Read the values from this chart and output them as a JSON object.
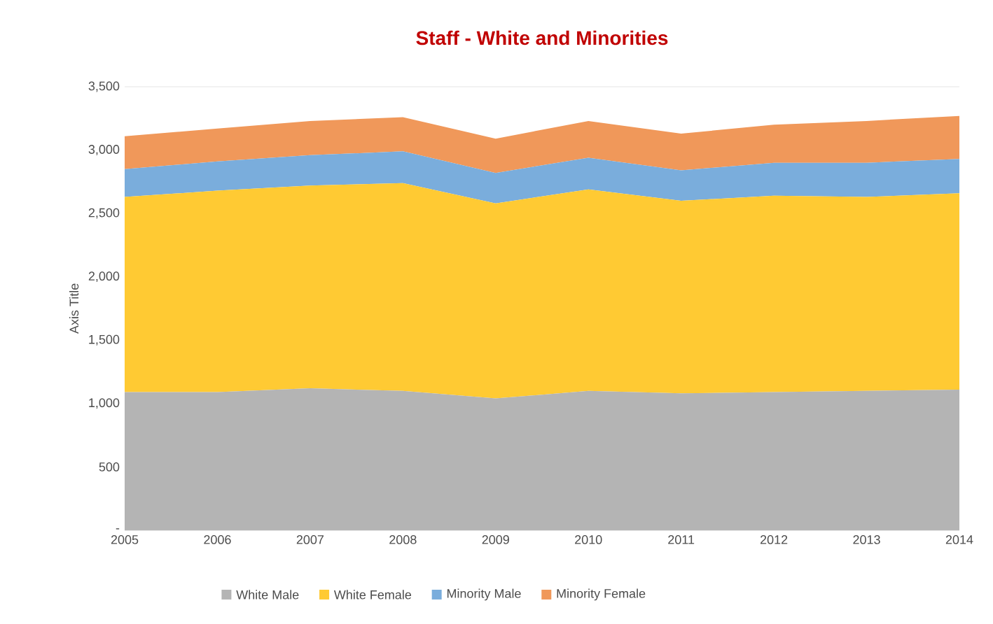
{
  "chart_data": {
    "type": "area",
    "title": "Staff - White and Minorities",
    "ylabel": "Axis Title",
    "stacked": true,
    "grid": "y",
    "legend": "bottom",
    "categories": [
      "2005",
      "2006",
      "2007",
      "2008",
      "2009",
      "2010",
      "2011",
      "2012",
      "2013",
      "2014"
    ],
    "series": [
      {
        "name": "White Male",
        "color": "#b4b4b4",
        "values": [
          1090,
          1090,
          1120,
          1100,
          1040,
          1100,
          1080,
          1090,
          1100,
          1110
        ]
      },
      {
        "name": "White Female",
        "color": "#ffca33",
        "values": [
          1540,
          1590,
          1600,
          1640,
          1540,
          1590,
          1520,
          1550,
          1530,
          1550
        ]
      },
      {
        "name": "Minority Male",
        "color": "#7aaddc",
        "values": [
          220,
          230,
          240,
          250,
          240,
          250,
          240,
          260,
          270,
          270
        ]
      },
      {
        "name": "Minority Female",
        "color": "#f0985a",
        "values": [
          260,
          260,
          270,
          270,
          270,
          290,
          290,
          300,
          330,
          340
        ]
      }
    ],
    "ylim": [
      0,
      3500
    ],
    "yticks": [
      {
        "value": 0,
        "label": "-"
      },
      {
        "value": 500,
        "label": "500"
      },
      {
        "value": 1000,
        "label": "1,000"
      },
      {
        "value": 1500,
        "label": "1,500"
      },
      {
        "value": 2000,
        "label": "2,000"
      },
      {
        "value": 2500,
        "label": "2,500"
      },
      {
        "value": 3000,
        "label": "3,000"
      },
      {
        "value": 3500,
        "label": "3,500"
      }
    ]
  }
}
